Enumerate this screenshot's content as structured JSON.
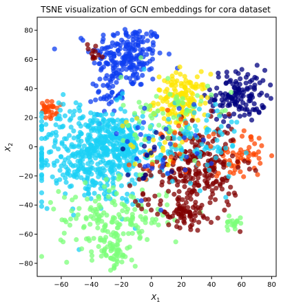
{
  "chart_data": {
    "type": "scatter",
    "title": "TSNE visualization of GCN embeddings for cora dataset",
    "xlabel": "X",
    "xlabel_sub": "1",
    "ylabel": "X",
    "ylabel_sub": "2",
    "xlim": [
      -76,
      83
    ],
    "ylim": [
      -89,
      89
    ],
    "xticks": [
      -60,
      -40,
      -20,
      0,
      20,
      40,
      60,
      80
    ],
    "yticks": [
      -80,
      -60,
      -40,
      -20,
      0,
      20,
      40,
      60,
      80
    ],
    "xtick_labels": [
      "−60",
      "−40",
      "−20",
      "0",
      "20",
      "40",
      "60",
      "80"
    ],
    "ytick_labels": [
      "−80",
      "−60",
      "−40",
      "−20",
      "0",
      "20",
      "40",
      "60",
      "80"
    ],
    "grid": false,
    "colormap": "jet",
    "marker_alpha": 0.75,
    "clusters": [
      {
        "color": "#0d3df0",
        "center": [
          -16,
          62
        ],
        "spread": [
          12,
          11
        ],
        "count": 210
      },
      {
        "color": "#0d3df0",
        "center": [
          -28,
          36
        ],
        "spread": [
          5,
          6
        ],
        "count": 40
      },
      {
        "color": "#00007f",
        "center": [
          58,
          35
        ],
        "spread": [
          9,
          9
        ],
        "count": 130
      },
      {
        "color": "#ffe600",
        "center": [
          20,
          32
        ],
        "spread": [
          9,
          9
        ],
        "count": 150
      },
      {
        "color": "#ff4500",
        "center": [
          -68,
          25
        ],
        "spread": [
          2.5,
          3
        ],
        "count": 28
      },
      {
        "color": "#ff4500",
        "center": [
          60,
          -5
        ],
        "spread": [
          8,
          8
        ],
        "count": 55
      },
      {
        "color": "#1ad0f5",
        "center": [
          -38,
          -5
        ],
        "spread": [
          20,
          17
        ],
        "count": 480
      },
      {
        "color": "#1ad0f5",
        "center": [
          -20,
          5
        ],
        "spread": [
          10,
          8
        ],
        "count": 120
      },
      {
        "color": "#7cff7a",
        "center": [
          -25,
          -50
        ],
        "spread": [
          18,
          12
        ],
        "count": 170
      },
      {
        "color": "#7cff7a",
        "center": [
          -25,
          -73
        ],
        "spread": [
          5,
          5
        ],
        "count": 45
      },
      {
        "color": "#7cff7a",
        "center": [
          55,
          -52
        ],
        "spread": [
          3,
          3
        ],
        "count": 18
      },
      {
        "color": "#800000",
        "center": [
          32,
          -15
        ],
        "spread": [
          13,
          15
        ],
        "count": 230
      },
      {
        "color": "#800000",
        "center": [
          22,
          -45
        ],
        "spread": [
          6,
          5
        ],
        "count": 60
      },
      {
        "color": "#800000",
        "center": [
          -38,
          64
        ],
        "spread": [
          3,
          4
        ],
        "count": 12
      },
      {
        "color": "#800000",
        "center": [
          -2,
          -30
        ],
        "spread": [
          6,
          10
        ],
        "count": 20
      },
      {
        "color": "#ffe600",
        "center": [
          5,
          5
        ],
        "spread": [
          12,
          10
        ],
        "count": 30
      },
      {
        "color": "#1ad0f5",
        "center": [
          30,
          5
        ],
        "spread": [
          15,
          15
        ],
        "count": 90
      },
      {
        "color": "#7cff7a",
        "center": [
          10,
          20
        ],
        "spread": [
          15,
          15
        ],
        "count": 60
      },
      {
        "color": "#ff4500",
        "center": [
          20,
          0
        ],
        "spread": [
          15,
          15
        ],
        "count": 25
      },
      {
        "color": "#0d3df0",
        "center": [
          5,
          0
        ],
        "spread": [
          15,
          15
        ],
        "count": 30
      },
      {
        "color": "#00007f",
        "center": [
          0,
          -5
        ],
        "spread": [
          10,
          10
        ],
        "count": 12
      }
    ]
  }
}
